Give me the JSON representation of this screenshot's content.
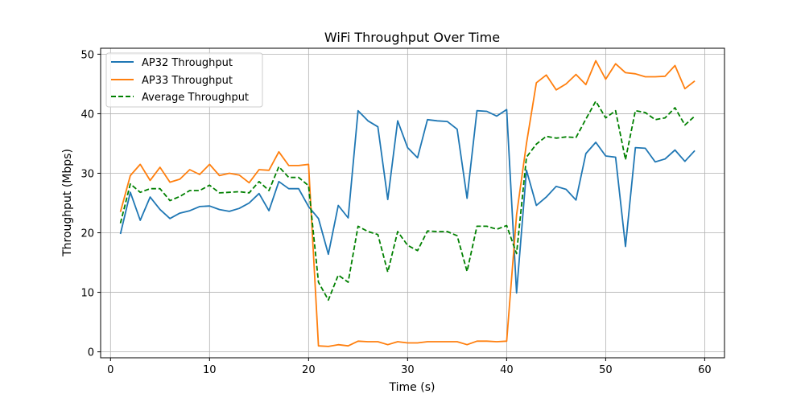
{
  "chart_data": {
    "type": "line",
    "title": "WiFi Throughput Over Time",
    "xlabel": "Time (s)",
    "ylabel": "Throughput (Mbps)",
    "xlim": [
      -1,
      62
    ],
    "ylim": [
      -1,
      51
    ],
    "xticks": [
      0,
      10,
      20,
      30,
      40,
      50,
      60
    ],
    "yticks": [
      0,
      10,
      20,
      30,
      40,
      50
    ],
    "grid": true,
    "legend_position": "top-left",
    "x": [
      1,
      2,
      3,
      4,
      5,
      6,
      7,
      8,
      9,
      10,
      11,
      12,
      13,
      14,
      15,
      16,
      17,
      18,
      19,
      20,
      21,
      22,
      23,
      24,
      25,
      26,
      27,
      28,
      29,
      30,
      31,
      32,
      33,
      34,
      35,
      36,
      37,
      38,
      39,
      40,
      41,
      42,
      43,
      44,
      45,
      46,
      47,
      48,
      49,
      50,
      51,
      52,
      53,
      54,
      55,
      56,
      57,
      58,
      59
    ],
    "series": [
      {
        "name": "AP32 Throughput",
        "color": "#1f77b4",
        "dash": "solid",
        "values": [
          19.8,
          26.8,
          22.1,
          26.0,
          23.9,
          22.4,
          23.3,
          23.7,
          24.4,
          24.5,
          23.9,
          23.6,
          24.1,
          25.0,
          26.6,
          23.7,
          28.6,
          27.4,
          27.4,
          24.4,
          22.4,
          16.4,
          24.6,
          22.5,
          40.5,
          38.8,
          37.8,
          25.6,
          38.8,
          34.3,
          32.6,
          39.0,
          38.8,
          38.7,
          37.4,
          25.8,
          40.5,
          40.4,
          39.6,
          40.7,
          9.9,
          30.5,
          24.6,
          26.0,
          27.8,
          27.3,
          25.5,
          33.3,
          35.2,
          32.9,
          32.7,
          17.7,
          34.3,
          34.2,
          31.9,
          32.4,
          33.9,
          32.0,
          33.8
        ]
      },
      {
        "name": "AP33 Throughput",
        "color": "#ff7f0e",
        "dash": "solid",
        "values": [
          23.5,
          29.6,
          31.5,
          28.8,
          31.0,
          28.5,
          29.0,
          30.6,
          29.8,
          31.5,
          29.6,
          30.0,
          29.7,
          28.4,
          30.6,
          30.5,
          33.6,
          31.3,
          31.3,
          31.5,
          1.0,
          0.9,
          1.2,
          1.0,
          1.8,
          1.7,
          1.7,
          1.2,
          1.7,
          1.5,
          1.5,
          1.7,
          1.7,
          1.7,
          1.7,
          1.2,
          1.8,
          1.8,
          1.7,
          1.8,
          23.0,
          35.0,
          45.2,
          46.5,
          44.0,
          45.0,
          46.6,
          44.9,
          48.9,
          45.8,
          48.4,
          46.9,
          46.7,
          46.2,
          46.2,
          46.3,
          48.1,
          44.2,
          45.5
        ]
      },
      {
        "name": "Average Throughput",
        "color": "#008000",
        "dash": "dashed",
        "values": [
          21.6,
          28.2,
          26.8,
          27.4,
          27.4,
          25.4,
          26.1,
          27.1,
          27.1,
          28.0,
          26.7,
          26.8,
          26.9,
          26.7,
          28.6,
          27.1,
          31.1,
          29.3,
          29.3,
          27.9,
          11.7,
          8.7,
          12.9,
          11.7,
          21.1,
          20.2,
          19.7,
          13.4,
          20.2,
          17.9,
          17.0,
          20.3,
          20.2,
          20.2,
          19.5,
          13.5,
          21.1,
          21.1,
          20.6,
          21.2,
          16.5,
          32.7,
          34.9,
          36.2,
          35.9,
          36.1,
          36.0,
          39.1,
          42.1,
          39.3,
          40.5,
          32.3,
          40.5,
          40.2,
          39.0,
          39.3,
          41.0,
          38.1,
          39.6
        ]
      }
    ]
  }
}
